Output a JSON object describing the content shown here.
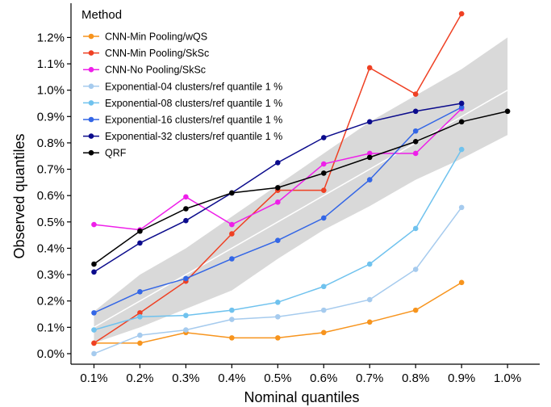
{
  "chart_data": {
    "type": "line",
    "xlabel": "Nominal quantiles",
    "ylabel": "Observed quantiles",
    "x": [
      0.1,
      0.2,
      0.3,
      0.4,
      0.5,
      0.6,
      0.7,
      0.8,
      0.9,
      1.0
    ],
    "x_tick_labels": [
      "0.1%",
      "0.2%",
      "0.3%",
      "0.4%",
      "0.5%",
      "0.6%",
      "0.7%",
      "0.8%",
      "0.9%",
      "1.0%"
    ],
    "y_ticks": [
      0.0,
      0.1,
      0.2,
      0.3,
      0.4,
      0.5,
      0.6,
      0.7,
      0.8,
      0.9,
      1.0,
      1.1,
      1.2
    ],
    "y_tick_labels": [
      "0.0%",
      "0.1%",
      "0.2%",
      "0.3%",
      "0.4%",
      "0.5%",
      "0.6%",
      "0.7%",
      "0.8%",
      "0.9%",
      "1.0%",
      "1.1%",
      "1.2%"
    ],
    "xlim": [
      0.05,
      1.07
    ],
    "ylim": [
      -0.04,
      1.33
    ],
    "grid": false,
    "legend": {
      "title": "Method",
      "position": "top-left"
    },
    "band": {
      "x": [
        0.1,
        0.2,
        0.3,
        0.4,
        0.5,
        0.6,
        0.7,
        0.8,
        0.9,
        1.0
      ],
      "lower": [
        0.04,
        0.1,
        0.17,
        0.24,
        0.36,
        0.47,
        0.56,
        0.66,
        0.74,
        0.83
      ],
      "upper": [
        0.16,
        0.3,
        0.4,
        0.52,
        0.64,
        0.76,
        0.88,
        0.98,
        1.08,
        1.2
      ],
      "color": "#d9d9d9",
      "center_line_color": "#ffffff"
    },
    "series": [
      {
        "name": "CNN-Min Pooling/wQS",
        "color": "#f7941d",
        "x": [
          0.1,
          0.2,
          0.3,
          0.4,
          0.5,
          0.6,
          0.7,
          0.8,
          0.9
        ],
        "values": [
          0.04,
          0.04,
          0.08,
          0.06,
          0.06,
          0.08,
          0.12,
          0.165,
          0.27
        ]
      },
      {
        "name": "CNN-Min Pooling/SkSc",
        "color": "#ef4023",
        "x": [
          0.1,
          0.2,
          0.3,
          0.4,
          0.5,
          0.6,
          0.7,
          0.8,
          0.9
        ],
        "values": [
          0.04,
          0.155,
          0.275,
          0.455,
          0.62,
          0.62,
          1.085,
          0.985,
          1.29
        ]
      },
      {
        "name": "CNN-No Pooling/SkSc",
        "color": "#ee1fe9",
        "x": [
          0.1,
          0.2,
          0.3,
          0.4,
          0.5,
          0.6,
          0.7,
          0.8,
          0.9
        ],
        "values": [
          0.49,
          0.47,
          0.595,
          0.49,
          0.575,
          0.72,
          0.76,
          0.76,
          0.93
        ]
      },
      {
        "name": "Exponential-04 clusters/ref quantile 1 %",
        "color": "#a6cbee",
        "x": [
          0.1,
          0.2,
          0.3,
          0.4,
          0.5,
          0.6,
          0.7,
          0.8,
          0.9
        ],
        "values": [
          0.0,
          0.07,
          0.09,
          0.13,
          0.14,
          0.165,
          0.205,
          0.32,
          0.555
        ]
      },
      {
        "name": "Exponential-08 clusters/ref quantile 1 %",
        "color": "#6fc2ee",
        "x": [
          0.1,
          0.2,
          0.3,
          0.4,
          0.5,
          0.6,
          0.7,
          0.8,
          0.9
        ],
        "values": [
          0.09,
          0.14,
          0.145,
          0.165,
          0.195,
          0.255,
          0.34,
          0.475,
          0.775
        ]
      },
      {
        "name": "Exponential-16 clusters/ref quantile 1 %",
        "color": "#3366e6",
        "x": [
          0.1,
          0.2,
          0.3,
          0.4,
          0.5,
          0.6,
          0.7,
          0.8,
          0.9
        ],
        "values": [
          0.155,
          0.235,
          0.285,
          0.36,
          0.43,
          0.515,
          0.66,
          0.845,
          0.935
        ]
      },
      {
        "name": "Exponential-32 clusters/ref quantile 1 %",
        "color": "#0b0b8c",
        "x": [
          0.1,
          0.2,
          0.3,
          0.4,
          0.5,
          0.6,
          0.7,
          0.8,
          0.9
        ],
        "values": [
          0.31,
          0.42,
          0.505,
          0.61,
          0.725,
          0.82,
          0.88,
          0.92,
          0.95
        ]
      },
      {
        "name": "QRF",
        "color": "#000000",
        "x": [
          0.1,
          0.2,
          0.3,
          0.4,
          0.5,
          0.6,
          0.7,
          0.8,
          0.9,
          1.0
        ],
        "values": [
          0.34,
          0.465,
          0.55,
          0.61,
          0.63,
          0.685,
          0.745,
          0.805,
          0.88,
          0.92
        ]
      }
    ]
  }
}
